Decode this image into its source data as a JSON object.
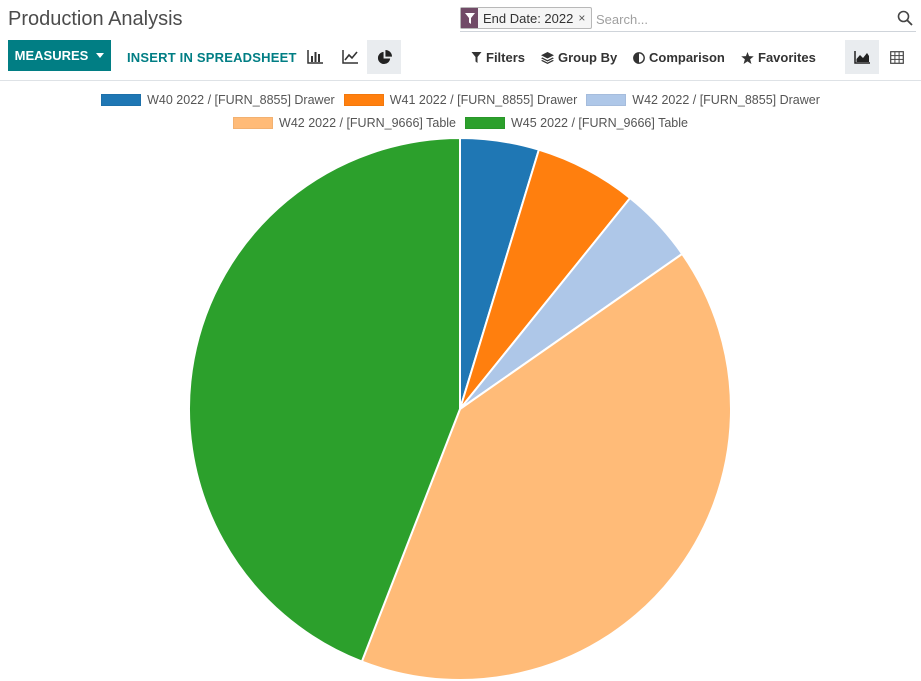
{
  "app": {
    "title": "Production Analysis"
  },
  "search": {
    "facet_label": "End Date: 2022",
    "facet_close": "×",
    "placeholder": "Search..."
  },
  "toolbar": {
    "measures_label": "MEASURES",
    "insert_label": "INSERT IN SPREADSHEET",
    "chart_modes": [
      "bar-chart-icon",
      "line-chart-icon",
      "pie-chart-icon"
    ],
    "active_mode": "pie",
    "filters_label": "Filters",
    "groupby_label": "Group By",
    "comparison_label": "Comparison",
    "favorites_label": "Favorites",
    "views": [
      "graph-view-icon",
      "pivot-view-icon"
    ],
    "active_view": "graph"
  },
  "colors": {
    "brand": "#714B67",
    "accent": "#017e84"
  },
  "chart_data": {
    "type": "pie",
    "series": [
      {
        "name": "W40 2022 / [FURN_8855] Drawer",
        "value": 4.7,
        "color": "#1f77b4"
      },
      {
        "name": "W41 2022 / [FURN_8855] Drawer",
        "value": 6.1,
        "color": "#ff7f0e"
      },
      {
        "name": "W42 2022 / [FURN_8855] Drawer",
        "value": 4.5,
        "color": "#aec7e8"
      },
      {
        "name": "W42 2022 / [FURN_9666] Table",
        "value": 40.6,
        "color": "#ffbb78"
      },
      {
        "name": "W45 2022 / [FURN_9666] Table",
        "value": 44.1,
        "color": "#2ca02c"
      }
    ],
    "legend_position": "top"
  }
}
